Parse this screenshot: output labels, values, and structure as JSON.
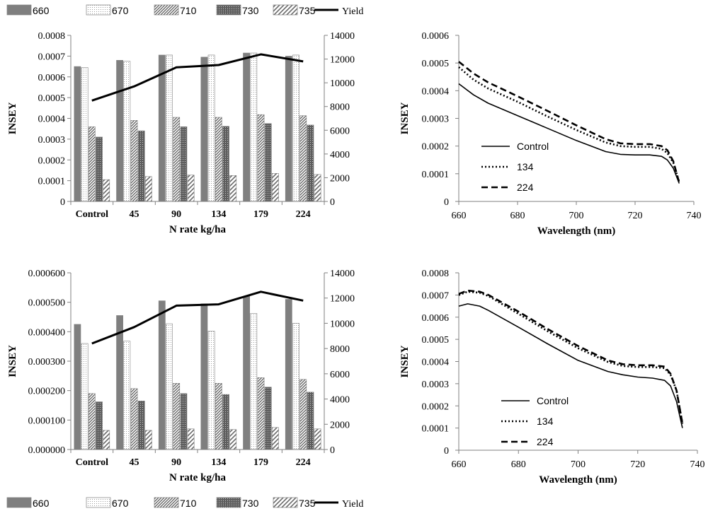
{
  "legend_top": {
    "items": [
      {
        "label": "660",
        "kind": "bar",
        "pattern": "solid"
      },
      {
        "label": "670",
        "kind": "bar",
        "pattern": "dots"
      },
      {
        "label": "710",
        "kind": "bar",
        "pattern": "diag"
      },
      {
        "label": "730",
        "kind": "bar",
        "pattern": "grid"
      },
      {
        "label": "735",
        "kind": "bar",
        "pattern": "wide"
      },
      {
        "label": "Yield",
        "kind": "line"
      }
    ]
  },
  "legend_bottom": {
    "items": [
      {
        "label": "660",
        "kind": "bar",
        "pattern": "solid"
      },
      {
        "label": "670",
        "kind": "bar",
        "pattern": "dots"
      },
      {
        "label": "710",
        "kind": "bar",
        "pattern": "diag"
      },
      {
        "label": "730",
        "kind": "bar",
        "pattern": "grid"
      },
      {
        "label": "735",
        "kind": "bar",
        "pattern": "wide"
      },
      {
        "label": "Yield",
        "kind": "line"
      }
    ]
  },
  "colors": {
    "bar_660": "#7f7f7f",
    "bar_edge": "#808080",
    "axis": "#808080",
    "line": "#000000"
  },
  "chart_data": [
    {
      "type": "bar",
      "categories": [
        "Control",
        "45",
        "90",
        "134",
        "179",
        "224"
      ],
      "xlabel": "N rate kg/ha",
      "ylabel": "INSEY",
      "ylim": [
        0,
        0.0008
      ],
      "yticks": [
        "0",
        "0.0001",
        "0.0002",
        "0.0003",
        "0.0004",
        "0.0005",
        "0.0006",
        "0.0007",
        "0.0008"
      ],
      "y2lim": [
        0,
        14000
      ],
      "y2ticks": [
        "0",
        "2000",
        "4000",
        "6000",
        "8000",
        "10000",
        "12000",
        "14000"
      ],
      "series": [
        {
          "name": "660",
          "values": [
            0.00065,
            0.00068,
            0.000705,
            0.000695,
            0.000715,
            0.0007
          ]
        },
        {
          "name": "670",
          "values": [
            0.000645,
            0.000675,
            0.000705,
            0.000705,
            0.000715,
            0.000705
          ]
        },
        {
          "name": "710",
          "values": [
            0.00036,
            0.00039,
            0.000405,
            0.000405,
            0.000418,
            0.000413
          ]
        },
        {
          "name": "730",
          "values": [
            0.00031,
            0.00034,
            0.00036,
            0.000362,
            0.000375,
            0.000368
          ]
        },
        {
          "name": "735",
          "values": [
            0.000105,
            0.00012,
            0.000127,
            0.000125,
            0.000135,
            0.00013
          ]
        }
      ],
      "line": {
        "name": "Yield",
        "axis": "secondary",
        "values": [
          8500,
          9700,
          11300,
          11500,
          12400,
          11800
        ]
      },
      "grid": false
    },
    {
      "type": "line",
      "xlabel": "Wavelength (nm)",
      "ylabel": "INSEY",
      "xlim": [
        660,
        740
      ],
      "xticks": [
        "660",
        "680",
        "700",
        "720",
        "740"
      ],
      "ylim": [
        0,
        0.0006
      ],
      "yticks": [
        "0",
        "0.0001",
        "0.0002",
        "0.0003",
        "0.0004",
        "0.0005",
        "0.0006"
      ],
      "series": [
        {
          "name": "Control",
          "style": "solid",
          "x": [
            660,
            665,
            670,
            680,
            690,
            700,
            710,
            715,
            720,
            725,
            729,
            731,
            733,
            735
          ],
          "y": [
            0.000425,
            0.000385,
            0.000355,
            0.00031,
            0.000265,
            0.00022,
            0.00018,
            0.00017,
            0.000168,
            0.000168,
            0.000163,
            0.00015,
            0.00012,
            6.5e-05
          ]
        },
        {
          "name": "134",
          "style": "dotted",
          "x": [
            660,
            665,
            670,
            680,
            690,
            700,
            710,
            715,
            720,
            725,
            729,
            731,
            733,
            735
          ],
          "y": [
            0.000485,
            0.00044,
            0.000408,
            0.00036,
            0.000308,
            0.000258,
            0.000213,
            0.0002,
            0.000197,
            0.000197,
            0.00019,
            0.000175,
            0.00014,
            7e-05
          ]
        },
        {
          "name": "224",
          "style": "dashed",
          "x": [
            660,
            665,
            670,
            680,
            690,
            700,
            710,
            715,
            720,
            725,
            729,
            731,
            733,
            735
          ],
          "y": [
            0.000505,
            0.000462,
            0.00043,
            0.00038,
            0.000328,
            0.000275,
            0.000225,
            0.00021,
            0.000207,
            0.000207,
            0.0002,
            0.000185,
            0.000145,
            6.8e-05
          ]
        }
      ],
      "legend": "lower-left",
      "grid": false
    },
    {
      "type": "bar",
      "categories": [
        "Control",
        "45",
        "90",
        "134",
        "179",
        "224"
      ],
      "xlabel": "N rate kg/ha",
      "ylabel": "INSEY",
      "ylim": [
        0,
        0.0006
      ],
      "yticks": [
        "0.000000",
        "0.000100",
        "0.000200",
        "0.000300",
        "0.000400",
        "0.000500",
        "0.000600"
      ],
      "y2lim": [
        0,
        14000
      ],
      "y2ticks": [
        "0",
        "2000",
        "4000",
        "6000",
        "8000",
        "10000",
        "12000",
        "14000"
      ],
      "series": [
        {
          "name": "660",
          "values": [
            0.000425,
            0.000455,
            0.000505,
            0.000495,
            0.00052,
            0.00051
          ]
        },
        {
          "name": "670",
          "values": [
            0.00036,
            0.000368,
            0.000427,
            0.000402,
            0.000462,
            0.000429
          ]
        },
        {
          "name": "710",
          "values": [
            0.00019,
            0.000207,
            0.000225,
            0.000225,
            0.000244,
            0.000238
          ]
        },
        {
          "name": "730",
          "values": [
            0.000162,
            0.000165,
            0.00019,
            0.000187,
            0.000212,
            0.000195
          ]
        },
        {
          "name": "735",
          "values": [
            6.5e-05,
            6.5e-05,
            7e-05,
            6.8e-05,
            7.5e-05,
            7e-05
          ]
        }
      ],
      "line": {
        "name": "Yield",
        "axis": "secondary",
        "values": [
          8400,
          9700,
          11400,
          11500,
          12500,
          11800
        ]
      },
      "grid": false
    },
    {
      "type": "line",
      "xlabel": "Wavelength (nm)",
      "ylabel": "INSEY",
      "xlim": [
        660,
        740
      ],
      "xticks": [
        "660",
        "680",
        "700",
        "720",
        "740"
      ],
      "ylim": [
        0,
        0.0008
      ],
      "yticks": [
        "0",
        "0.0001",
        "0.0002",
        "0.0003",
        "0.0004",
        "0.0005",
        "0.0006",
        "0.0007",
        "0.0008"
      ],
      "series": [
        {
          "name": "Control",
          "style": "solid",
          "x": [
            660,
            663,
            667,
            670,
            680,
            690,
            700,
            710,
            715,
            720,
            725,
            729,
            731,
            733,
            735
          ],
          "y": [
            0.00065,
            0.00066,
            0.00065,
            0.00063,
            0.000555,
            0.000478,
            0.000405,
            0.000355,
            0.00034,
            0.00033,
            0.000325,
            0.000315,
            0.00029,
            0.00022,
            0.0001
          ]
        },
        {
          "name": "134",
          "style": "dotted",
          "x": [
            660,
            663,
            667,
            670,
            680,
            690,
            700,
            710,
            715,
            720,
            725,
            729,
            731,
            733,
            735
          ],
          "y": [
            0.0007,
            0.000715,
            0.00071,
            0.000695,
            0.000615,
            0.000535,
            0.00046,
            0.000398,
            0.00038,
            0.000375,
            0.000375,
            0.00037,
            0.00034,
            0.00027,
            0.00012
          ]
        },
        {
          "name": "224",
          "style": "dashed",
          "x": [
            660,
            663,
            667,
            670,
            680,
            690,
            700,
            710,
            715,
            720,
            725,
            729,
            731,
            733,
            735
          ],
          "y": [
            0.000705,
            0.00072,
            0.000715,
            0.0007,
            0.000625,
            0.000545,
            0.00047,
            0.000405,
            0.000388,
            0.000383,
            0.000383,
            0.000377,
            0.000345,
            0.00027,
            0.00012
          ]
        }
      ],
      "legend": "lower-left",
      "grid": false
    }
  ]
}
